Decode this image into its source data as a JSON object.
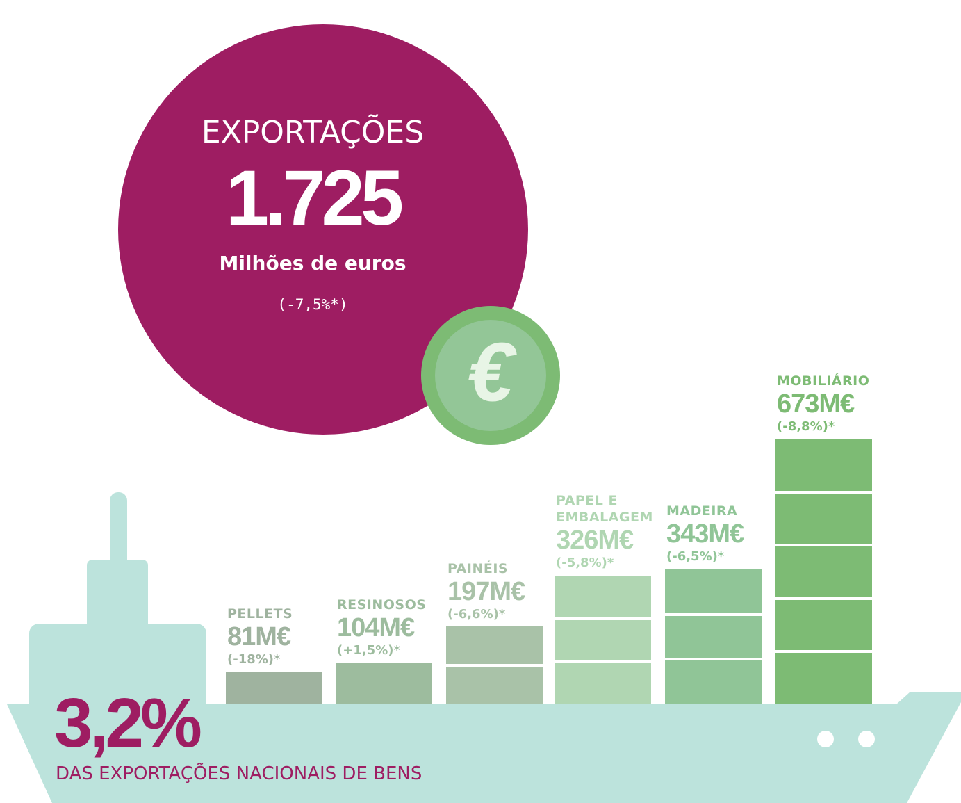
{
  "header": {
    "title": "EXPORTAÇÕES",
    "value": "1.725",
    "unit": "Milhões de euros",
    "change": "(-7,5%*)",
    "icon": "€"
  },
  "chart_data": {
    "type": "bar",
    "categories": [
      "PELLETS",
      "RESINOSOS",
      "PAINÉIS",
      "PAPEL E EMBALAGEM",
      "MADEIRA",
      "MOBILIÁRIO"
    ],
    "values": [
      81,
      104,
      197,
      326,
      343,
      673
    ],
    "value_labels": [
      "81M€",
      "104M€",
      "197M€",
      "326M€",
      "343M€",
      "673M€"
    ],
    "changes": [
      "(-18%)*",
      "(+1,5%)*",
      "(-6,6%)*",
      "(-5,8%)*",
      "(-6,5%)*",
      "(-8,8%)*"
    ],
    "colors": [
      "#9fb39f",
      "#9dbc9e",
      "#a9c2a8",
      "#b0d6b2",
      "#90c597",
      "#7dbb74"
    ]
  },
  "footer": {
    "value": "3,2%",
    "text": "DAS EXPORTAÇÕES NACIONAIS DE BENS"
  }
}
